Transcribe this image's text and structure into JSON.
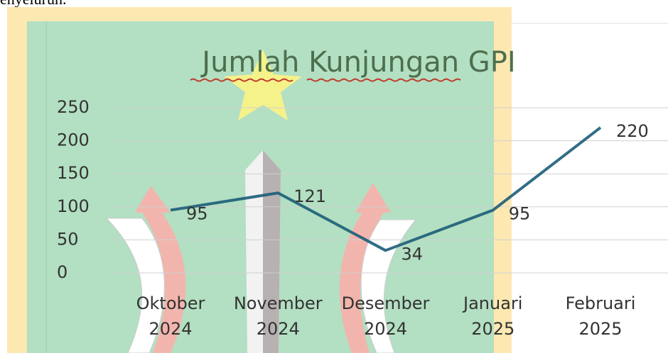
{
  "page_text": "enyeluruh.",
  "chart_data": {
    "type": "line",
    "title": "Jumlah Kunjungan GPI",
    "categories": [
      "Oktober 2024",
      "November 2024",
      "Desember 2024",
      "Januari 2025",
      "Februari 2025"
    ],
    "series": [
      {
        "name": "Jumlah Kunjungan GPI",
        "color": "#1b5d78",
        "values": [
          95,
          121,
          34,
          95,
          220
        ]
      }
    ],
    "ylim": [
      0,
      250
    ],
    "yticks": [
      0,
      50,
      100,
      150,
      200,
      250
    ],
    "grid": true,
    "data_labels": true
  }
}
